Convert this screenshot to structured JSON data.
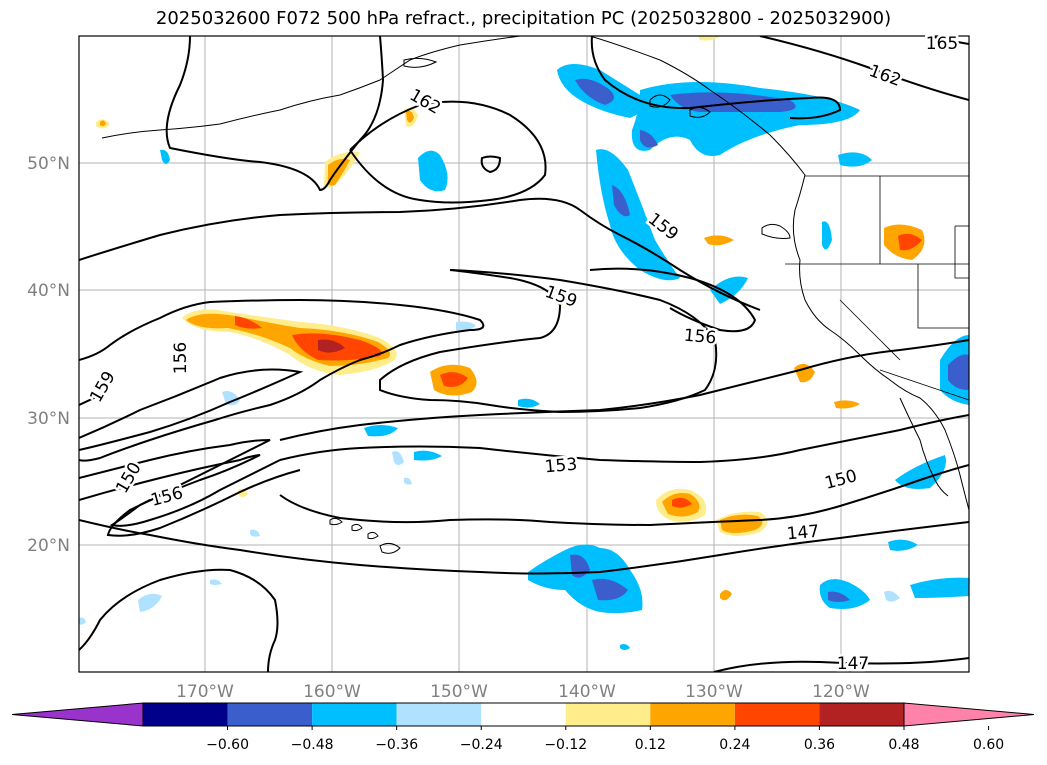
{
  "title": "2025032600 F072 500 hPa refract., precipitation PC (2025032800 - 2025032900)",
  "lat_labels": [
    "50°N",
    "40°N",
    "30°N",
    "20°N"
  ],
  "lon_labels": [
    "170°W",
    "160°W",
    "150°W",
    "140°W",
    "130°W",
    "120°W"
  ],
  "contour_labels": [
    {
      "name": "contour-label-165",
      "text": "165"
    },
    {
      "name": "contour-label-162-a",
      "text": "162"
    },
    {
      "name": "contour-label-162-b",
      "text": "162"
    },
    {
      "name": "contour-label-159-a",
      "text": "159"
    },
    {
      "name": "contour-label-159-b",
      "text": "159"
    },
    {
      "name": "contour-label-159-c",
      "text": "159"
    },
    {
      "name": "contour-label-156-a",
      "text": "156"
    },
    {
      "name": "contour-label-156-b",
      "text": "156"
    },
    {
      "name": "contour-label-156-c",
      "text": "156"
    },
    {
      "name": "contour-label-153",
      "text": "153"
    },
    {
      "name": "contour-label-150-a",
      "text": "150"
    },
    {
      "name": "contour-label-150-b",
      "text": "150"
    },
    {
      "name": "contour-label-147-a",
      "text": "147"
    },
    {
      "name": "contour-label-147-b",
      "text": "147"
    }
  ],
  "colorbar": {
    "colors": [
      "#9933cc",
      "#00008b",
      "#3a5fcd",
      "#00bfff",
      "#b0e2ff",
      "#ffffff",
      "#ffec8b",
      "#ffa500",
      "#ff4500",
      "#b22222",
      "#ff82ab"
    ],
    "tick_labels": [
      "−0.60",
      "−0.48",
      "−0.36",
      "−0.24",
      "−0.12",
      "0.12",
      "0.24",
      "0.36",
      "0.48",
      "0.60"
    ]
  }
}
